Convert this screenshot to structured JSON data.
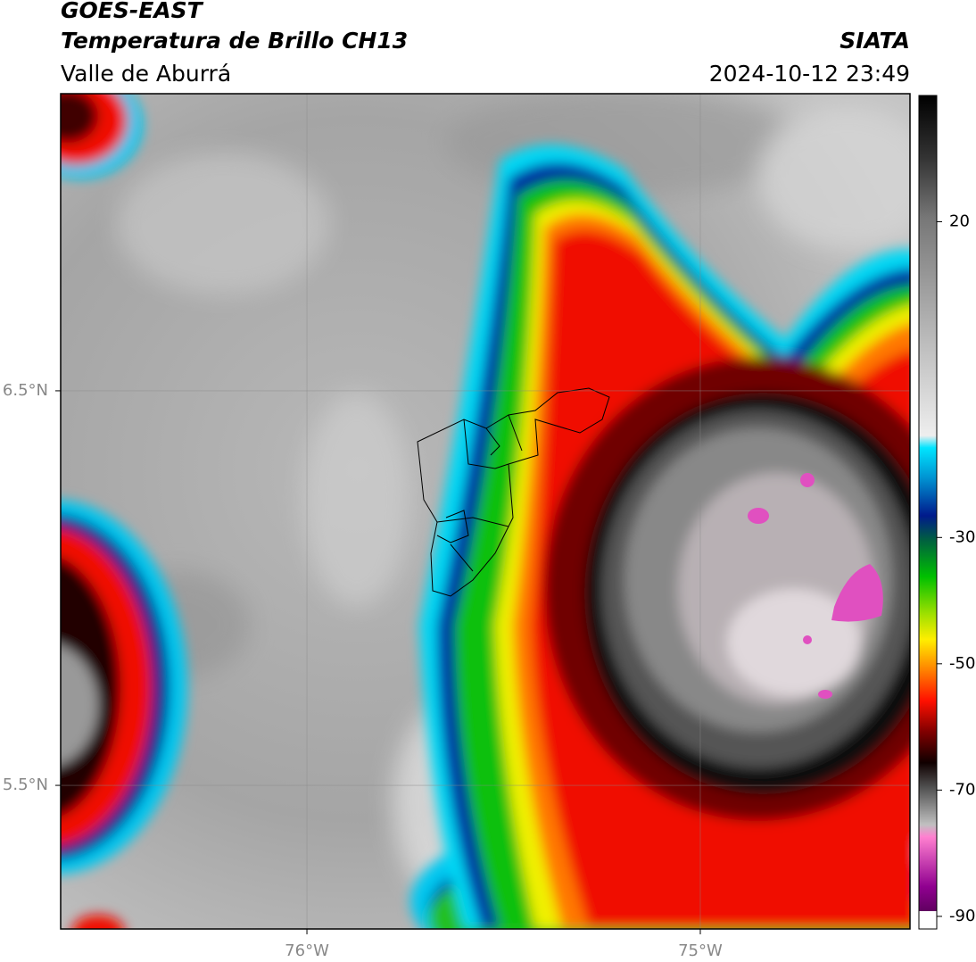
{
  "header": {
    "satellite": "GOES-EAST",
    "product": "Temperatura de Brillo CH13",
    "region": "Valle de Aburrá",
    "agency": "SIATA",
    "datetime": "2024-10-12 23:49"
  },
  "map": {
    "xlim": [
      -76.626,
      -74.467
    ],
    "ylim": [
      5.136,
      7.253
    ],
    "xticks": [
      {
        "value": -76,
        "label": "76°W"
      },
      {
        "value": -75,
        "label": "75°W"
      }
    ],
    "yticks": [
      {
        "value": 5.5,
        "label": "5.5°N"
      },
      {
        "value": 6.5,
        "label": "6.5°N"
      }
    ],
    "grid": true
  },
  "colorbar": {
    "lim": [
      -92,
      40
    ],
    "ticks": [
      20,
      -30,
      -50,
      -70,
      -90
    ]
  }
}
